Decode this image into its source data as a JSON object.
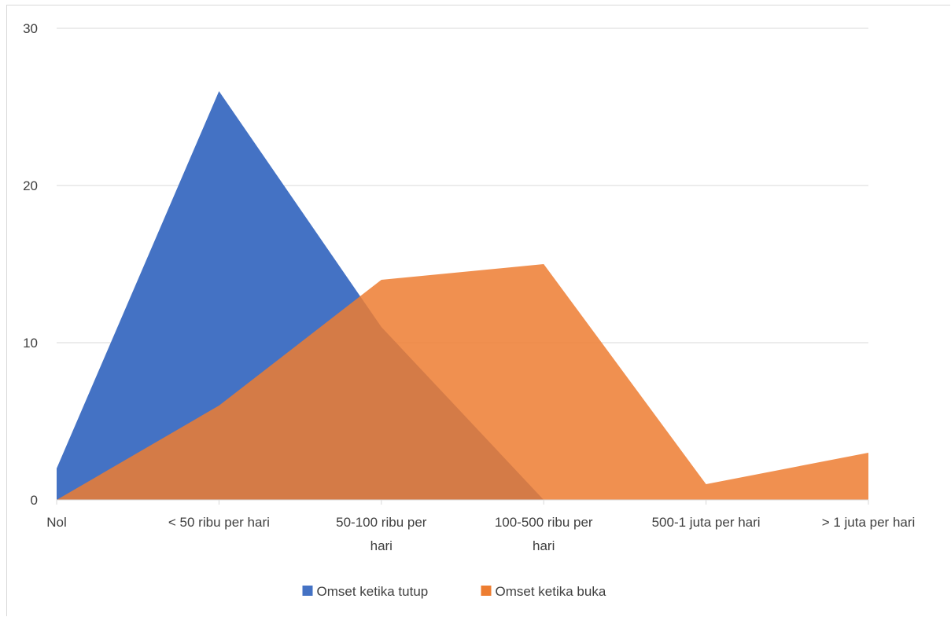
{
  "chart_data": {
    "type": "area",
    "categories": [
      [
        "Nol"
      ],
      [
        "< 50 ribu per hari"
      ],
      [
        "50-100 ribu per",
        "hari"
      ],
      [
        "100-500 ribu per",
        "hari"
      ],
      [
        "500-1 juta per hari"
      ],
      [
        "> 1 juta per hari"
      ]
    ],
    "series": [
      {
        "name": "Omset ketika tutup",
        "values": [
          2,
          26,
          11,
          0,
          null,
          null
        ],
        "color": "#4472C4",
        "opacity": 1
      },
      {
        "name": "Omset ketika buka",
        "values": [
          0,
          6,
          14,
          15,
          1,
          3
        ],
        "color": "#ED7D31",
        "opacity": 0.85
      }
    ],
    "ylim": [
      0,
      30
    ],
    "yticks": [
      0,
      10,
      20,
      30
    ],
    "grid": true,
    "legend_position": "bottom",
    "title": "",
    "xlabel": "",
    "ylabel": ""
  }
}
